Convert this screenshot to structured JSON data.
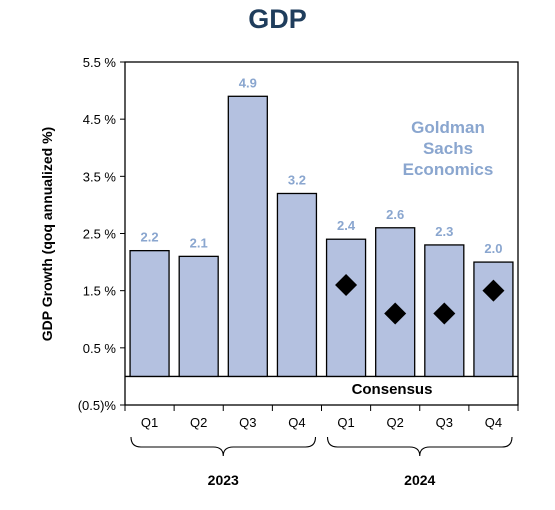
{
  "chart_data": {
    "type": "bar",
    "title": "GDP",
    "ylabel": "GDP Growth (qoq annualized %)",
    "xlabel": "",
    "ylim": [
      -0.5,
      5.5
    ],
    "yticks": [
      -0.5,
      0.5,
      1.5,
      2.5,
      3.5,
      4.5,
      5.5
    ],
    "ytick_labels": [
      "(0.5)%",
      "0.5 %",
      "1.5 %",
      "2.5 %",
      "3.5 %",
      "4.5 %",
      "5.5 %"
    ],
    "grid": false,
    "categories": [
      "Q1",
      "Q2",
      "Q3",
      "Q4",
      "Q1",
      "Q2",
      "Q3",
      "Q4"
    ],
    "groups": [
      {
        "label": "2023",
        "start": 0,
        "end": 3
      },
      {
        "label": "2024",
        "start": 4,
        "end": 7
      }
    ],
    "series": [
      {
        "type": "bar",
        "values": [
          2.2,
          2.1,
          4.9,
          3.2,
          2.4,
          2.6,
          2.3,
          2.0
        ],
        "data_labels": [
          "2.2",
          "2.1",
          "4.9",
          "3.2",
          "2.4",
          "2.6",
          "2.3",
          "2.0"
        ]
      },
      {
        "type": "marker",
        "values": [
          null,
          null,
          null,
          null,
          1.6,
          1.1,
          1.1,
          1.5
        ]
      }
    ],
    "annotations": [
      "Goldman",
      "Sachs",
      "Economics",
      "Consensus"
    ]
  },
  "colors": {
    "bar_fill": "#b4c1e0",
    "bar_stroke": "#000000",
    "label": "#8aa6cf",
    "title": "#1f3d5c",
    "marker": "#000000"
  }
}
